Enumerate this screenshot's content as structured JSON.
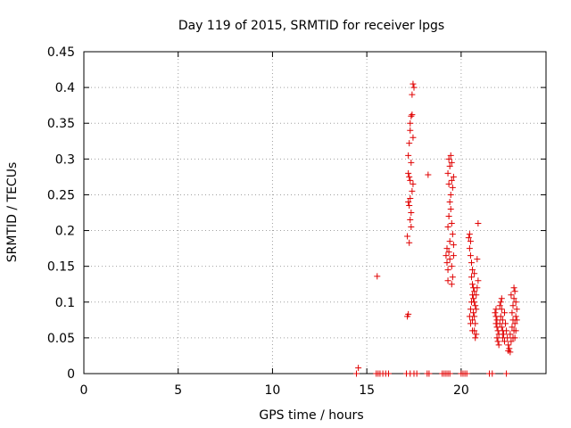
{
  "chart_data": {
    "type": "scatter",
    "title": "Day 119 of 2015, SRMTID for receiver lpgs",
    "xlabel": "GPS time / hours",
    "ylabel": "SRMTID / TECUs",
    "xlim": [
      0,
      24.5
    ],
    "ylim": [
      0,
      0.45
    ],
    "xticks": [
      0,
      5,
      10,
      15,
      20
    ],
    "xtick_labels": [
      "0",
      "5",
      "10",
      "15",
      "20"
    ],
    "yticks": [
      0,
      0.05,
      0.1,
      0.15,
      0.2,
      0.25,
      0.3,
      0.35,
      0.4,
      0.45
    ],
    "ytick_labels": [
      "0",
      "0.05",
      "0.1",
      "0.15",
      "0.2",
      "0.25",
      "0.3",
      "0.35",
      "0.4",
      "0.45"
    ],
    "grid": true,
    "marker": "+",
    "color": "#e00000",
    "series": [
      {
        "name": "SRMTID",
        "points": [
          [
            14.45,
            0.0
          ],
          [
            14.55,
            0.008
          ],
          [
            15.5,
            0.0
          ],
          [
            15.6,
            0.0
          ],
          [
            15.7,
            0.0
          ],
          [
            15.85,
            0.0
          ],
          [
            16.0,
            0.0
          ],
          [
            16.15,
            0.0
          ],
          [
            15.55,
            0.136
          ],
          [
            17.1,
            0.0
          ],
          [
            17.3,
            0.0
          ],
          [
            17.5,
            0.0
          ],
          [
            17.65,
            0.0
          ],
          [
            18.2,
            0.0
          ],
          [
            18.3,
            0.0
          ],
          [
            19.0,
            0.0
          ],
          [
            19.1,
            0.0
          ],
          [
            19.2,
            0.0
          ],
          [
            19.3,
            0.0
          ],
          [
            19.4,
            0.0
          ],
          [
            20.0,
            0.0
          ],
          [
            20.1,
            0.0
          ],
          [
            20.2,
            0.0
          ],
          [
            20.3,
            0.0
          ],
          [
            21.5,
            0.0
          ],
          [
            21.65,
            0.0
          ],
          [
            22.4,
            0.0
          ],
          [
            17.15,
            0.08
          ],
          [
            17.2,
            0.083
          ],
          [
            17.15,
            0.192
          ],
          [
            17.25,
            0.183
          ],
          [
            17.2,
            0.24
          ],
          [
            17.3,
            0.245
          ],
          [
            17.25,
            0.275
          ],
          [
            17.2,
            0.28
          ],
          [
            17.3,
            0.27
          ],
          [
            17.35,
            0.295
          ],
          [
            17.2,
            0.305
          ],
          [
            17.25,
            0.322
          ],
          [
            17.3,
            0.34
          ],
          [
            17.35,
            0.36
          ],
          [
            17.4,
            0.362
          ],
          [
            17.45,
            0.33
          ],
          [
            17.5,
            0.4
          ],
          [
            17.45,
            0.405
          ],
          [
            17.4,
            0.39
          ],
          [
            17.35,
            0.225
          ],
          [
            17.3,
            0.215
          ],
          [
            17.4,
            0.255
          ],
          [
            17.45,
            0.265
          ],
          [
            17.35,
            0.205
          ],
          [
            17.25,
            0.235
          ],
          [
            17.3,
            0.35
          ],
          [
            18.25,
            0.278
          ],
          [
            19.2,
            0.165
          ],
          [
            19.25,
            0.155
          ],
          [
            19.3,
            0.145
          ],
          [
            19.3,
            0.13
          ],
          [
            19.35,
            0.17
          ],
          [
            19.4,
            0.185
          ],
          [
            19.3,
            0.205
          ],
          [
            19.35,
            0.22
          ],
          [
            19.4,
            0.24
          ],
          [
            19.45,
            0.25
          ],
          [
            19.35,
            0.265
          ],
          [
            19.3,
            0.28
          ],
          [
            19.4,
            0.29
          ],
          [
            19.35,
            0.3
          ],
          [
            19.45,
            0.305
          ],
          [
            19.5,
            0.295
          ],
          [
            19.5,
            0.27
          ],
          [
            19.55,
            0.26
          ],
          [
            19.45,
            0.23
          ],
          [
            19.5,
            0.21
          ],
          [
            19.55,
            0.195
          ],
          [
            19.6,
            0.18
          ],
          [
            19.6,
            0.165
          ],
          [
            19.5,
            0.15
          ],
          [
            19.55,
            0.135
          ],
          [
            19.5,
            0.125
          ],
          [
            19.4,
            0.16
          ],
          [
            19.25,
            0.175
          ],
          [
            19.6,
            0.275
          ],
          [
            20.4,
            0.19
          ],
          [
            20.45,
            0.195
          ],
          [
            20.5,
            0.185
          ],
          [
            20.45,
            0.175
          ],
          [
            20.5,
            0.165
          ],
          [
            20.55,
            0.155
          ],
          [
            20.6,
            0.145
          ],
          [
            20.55,
            0.135
          ],
          [
            20.6,
            0.125
          ],
          [
            20.65,
            0.12
          ],
          [
            20.7,
            0.115
          ],
          [
            20.6,
            0.11
          ],
          [
            20.65,
            0.105
          ],
          [
            20.7,
            0.1
          ],
          [
            20.75,
            0.095
          ],
          [
            20.8,
            0.09
          ],
          [
            20.65,
            0.085
          ],
          [
            20.7,
            0.08
          ],
          [
            20.6,
            0.075
          ],
          [
            20.75,
            0.07
          ],
          [
            20.7,
            0.06
          ],
          [
            20.8,
            0.055
          ],
          [
            20.75,
            0.05
          ],
          [
            20.5,
            0.09
          ],
          [
            20.55,
            0.1
          ],
          [
            20.45,
            0.08
          ],
          [
            20.8,
            0.11
          ],
          [
            20.85,
            0.12
          ],
          [
            20.9,
            0.13
          ],
          [
            20.85,
            0.16
          ],
          [
            20.9,
            0.21
          ],
          [
            20.7,
            0.14
          ],
          [
            20.6,
            0.06
          ],
          [
            20.5,
            0.07
          ],
          [
            21.8,
            0.085
          ],
          [
            21.85,
            0.08
          ],
          [
            21.9,
            0.075
          ],
          [
            21.85,
            0.07
          ],
          [
            21.9,
            0.065
          ],
          [
            21.95,
            0.06
          ],
          [
            22.0,
            0.055
          ],
          [
            21.9,
            0.05
          ],
          [
            21.95,
            0.045
          ],
          [
            22.0,
            0.04
          ],
          [
            22.05,
            0.07
          ],
          [
            22.1,
            0.08
          ],
          [
            22.15,
            0.09
          ],
          [
            22.2,
            0.075
          ],
          [
            22.15,
            0.065
          ],
          [
            22.2,
            0.06
          ],
          [
            22.25,
            0.055
          ],
          [
            22.2,
            0.05
          ],
          [
            22.3,
            0.045
          ],
          [
            22.1,
            0.1
          ],
          [
            22.15,
            0.105
          ],
          [
            22.05,
            0.095
          ],
          [
            21.85,
            0.09
          ],
          [
            22.3,
            0.085
          ],
          [
            22.35,
            0.07
          ],
          [
            22.4,
            0.06
          ],
          [
            22.45,
            0.05
          ],
          [
            22.5,
            0.04
          ],
          [
            22.55,
            0.035
          ],
          [
            22.6,
            0.03
          ],
          [
            22.5,
            0.032
          ],
          [
            22.65,
            0.045
          ],
          [
            22.6,
            0.055
          ],
          [
            22.7,
            0.065
          ],
          [
            22.75,
            0.075
          ],
          [
            22.7,
            0.085
          ],
          [
            22.75,
            0.095
          ],
          [
            22.8,
            0.105
          ],
          [
            22.85,
            0.115
          ],
          [
            22.8,
            0.12
          ],
          [
            22.9,
            0.1
          ],
          [
            22.9,
            0.08
          ],
          [
            22.85,
            0.07
          ],
          [
            22.95,
            0.09
          ],
          [
            22.8,
            0.06
          ],
          [
            22.75,
            0.05
          ],
          [
            22.9,
            0.06
          ],
          [
            22.85,
            0.05
          ],
          [
            22.95,
            0.075
          ],
          [
            22.65,
            0.11
          ]
        ]
      }
    ]
  }
}
